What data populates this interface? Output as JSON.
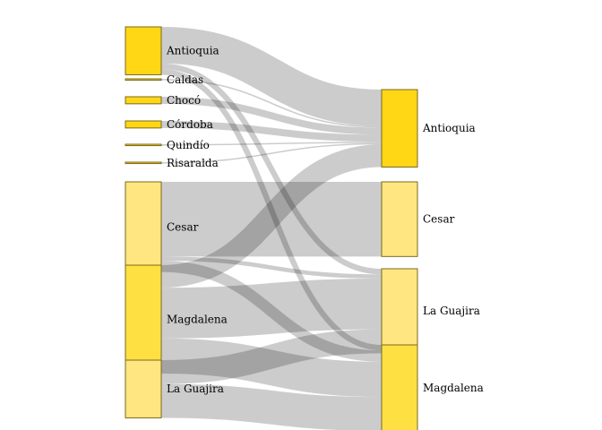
{
  "diagram": {
    "type": "sankey",
    "colors": {
      "strong": "#FFD714",
      "medium": "#FFE043",
      "light": "#FFE680",
      "link": "#000000"
    },
    "sources": [
      {
        "id": "src-antioquia",
        "label": "Antioquia",
        "color": "strong"
      },
      {
        "id": "src-caldas",
        "label": "Caldas",
        "color": "strong"
      },
      {
        "id": "src-choco",
        "label": "Chocó",
        "color": "strong"
      },
      {
        "id": "src-cordoba",
        "label": "Córdoba",
        "color": "strong"
      },
      {
        "id": "src-quindio",
        "label": "Quindío",
        "color": "strong"
      },
      {
        "id": "src-risaralda",
        "label": "Risaralda",
        "color": "strong"
      },
      {
        "id": "src-cesar",
        "label": "Cesar",
        "color": "light"
      },
      {
        "id": "src-magdalena",
        "label": "Magdalena",
        "color": "medium"
      },
      {
        "id": "src-laguajira",
        "label": "La Guajira",
        "color": "light"
      }
    ],
    "targets": [
      {
        "id": "tgt-antioquia",
        "label": "Antioquia",
        "color": "strong"
      },
      {
        "id": "tgt-cesar",
        "label": "Cesar",
        "color": "light"
      },
      {
        "id": "tgt-laguajira",
        "label": "La Guajira",
        "color": "light"
      },
      {
        "id": "tgt-magdalena",
        "label": "Magdalena",
        "color": "medium"
      }
    ],
    "links": [
      {
        "source": "src-antioquia",
        "target": "tgt-antioquia",
        "value": 26
      },
      {
        "source": "src-antioquia",
        "target": "tgt-laguajira",
        "value": 4
      },
      {
        "source": "src-antioquia",
        "target": "tgt-magdalena",
        "value": 4
      },
      {
        "source": "src-caldas",
        "target": "tgt-antioquia",
        "value": 1
      },
      {
        "source": "src-choco",
        "target": "tgt-antioquia",
        "value": 5
      },
      {
        "source": "src-cordoba",
        "target": "tgt-antioquia",
        "value": 5
      },
      {
        "source": "src-quindio",
        "target": "tgt-antioquia",
        "value": 1
      },
      {
        "source": "src-risaralda",
        "target": "tgt-antioquia",
        "value": 1
      },
      {
        "source": "src-cesar",
        "target": "tgt-cesar",
        "value": 53
      },
      {
        "source": "src-cesar",
        "target": "tgt-laguajira",
        "value": 3
      },
      {
        "source": "src-cesar",
        "target": "tgt-magdalena",
        "value": 8
      },
      {
        "source": "src-magdalena",
        "target": "tgt-antioquia",
        "value": 16
      },
      {
        "source": "src-magdalena",
        "target": "tgt-laguajira",
        "value": 36
      },
      {
        "source": "src-magdalena",
        "target": "tgt-magdalena",
        "value": 25
      },
      {
        "source": "src-laguajira",
        "target": "tgt-laguajira",
        "value": 17
      },
      {
        "source": "src-laguajira",
        "target": "tgt-magdalena",
        "value": 24
      }
    ]
  }
}
